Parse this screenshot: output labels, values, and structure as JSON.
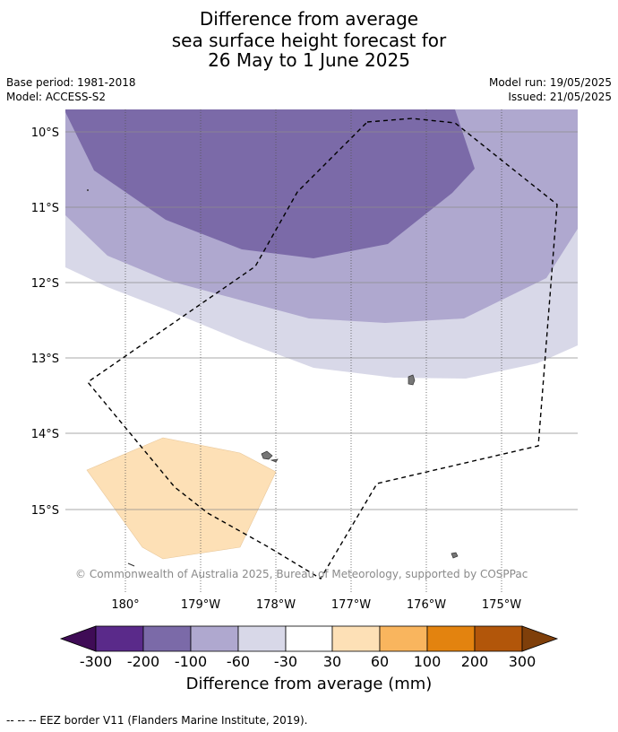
{
  "title": {
    "line1": "Difference from average",
    "line2": "sea surface height forecast for",
    "line3": "26 May to 1 June 2025"
  },
  "meta": {
    "base_period": "Base period: 1981-2018",
    "model": "Model: ACCESS-S2",
    "model_run": "Model run: 19/05/2025",
    "issued": "Issued: 21/05/2025"
  },
  "axes": {
    "lat_labels": [
      "10°S",
      "11°S",
      "12°S",
      "13°S",
      "14°S",
      "15°S"
    ],
    "lon_labels": [
      "180°",
      "179°W",
      "178°W",
      "177°W",
      "176°W",
      "175°W"
    ]
  },
  "copyright": "© Commonwealth of Australia 2025, Bureau of Meteorology, supported by COSPPac",
  "colorbar": {
    "title": "Difference from average (mm)",
    "tick_labels": [
      "-300",
      "-200",
      "-100",
      "-60",
      "-30",
      "30",
      "60",
      "100",
      "200",
      "300"
    ],
    "colors": [
      "#3f0c56",
      "#5a2a8a",
      "#7b6aa8",
      "#afa8cf",
      "#d8d8e8",
      "#ffffff",
      "#fde0b6",
      "#f9b55e",
      "#e3830f",
      "#b2560a",
      "#7f3f0a"
    ]
  },
  "footnote": "--  --  -- EEZ border V11 (Flanders Marine Institute, 2019)."
}
